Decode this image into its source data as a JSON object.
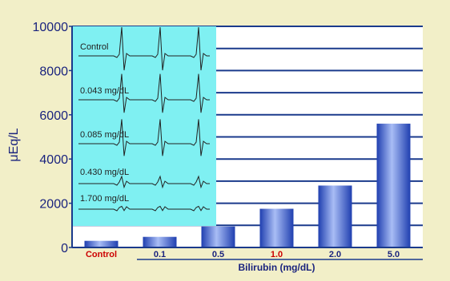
{
  "chart_data": {
    "type": "bar",
    "categories": [
      "Control",
      "0.1",
      "0.5",
      "1.0",
      "2.0",
      "5.0"
    ],
    "values": [
      300,
      480,
      950,
      1750,
      2800,
      5600
    ],
    "highlight_categories": [
      "Control",
      "1.0"
    ],
    "xlabel": "Bilirubin (mg/dL)",
    "ylabel": "μEq/L",
    "ylim": [
      0,
      10000
    ],
    "yticks": [
      0,
      2000,
      4000,
      6000,
      8000,
      10000
    ],
    "grid": true,
    "colors": {
      "background": "#f2efc8",
      "plot_background": "#ffffff",
      "inset_background": "#7ff0f2",
      "axis": "#1a3a8c",
      "bar": "#4f6fe0",
      "bar_light": "#a9bdf5",
      "bar_dark": "#1f3fb0",
      "tick_label": "#1a237e",
      "highlight_label": "#cc0000"
    }
  },
  "inset": {
    "trace_labels": [
      "Control",
      "0.043 mg/dL",
      "0.085 mg/dL",
      "0.430 mg/dL",
      "1.700 mg/dL"
    ],
    "trace_spike_heights": [
      1.0,
      0.9,
      0.85,
      0.25,
      0.1
    ]
  }
}
